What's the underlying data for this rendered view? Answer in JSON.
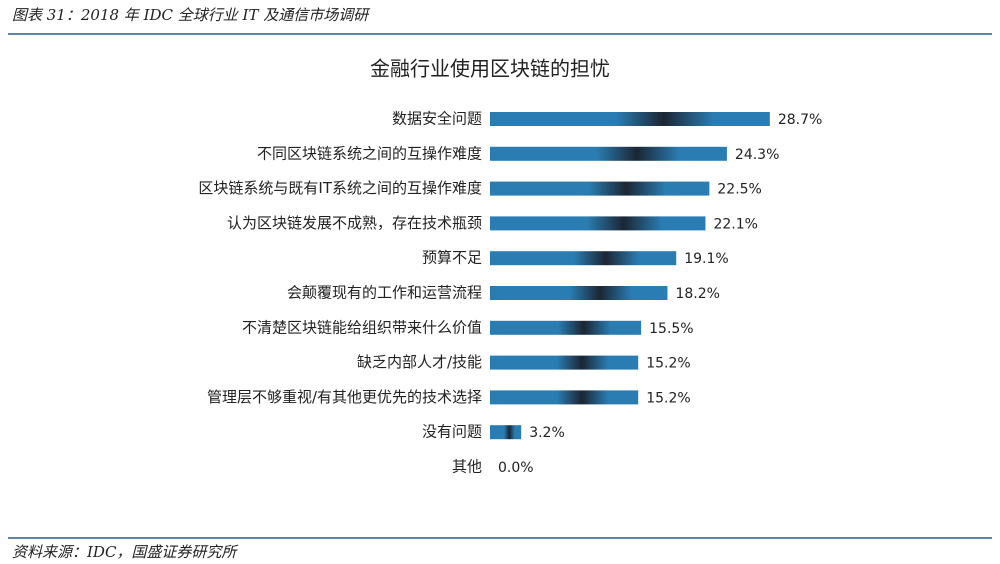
{
  "caption": "图表 31：2018 年 IDC 全球行业 IT 及通信市场调研",
  "source": "资料来源：IDC，国盛证券研究所",
  "chart_data": {
    "type": "hbar",
    "title": "金融行业使用区块链的担忧",
    "categories": [
      "数据安全问题",
      "不同区块链系统之间的互操作难度",
      "区块链系统与既有IT系统之间的互操作难度",
      "认为区块链发展不成熟，存在技术瓶颈",
      "预算不足",
      "会颠覆现有的工作和运营流程",
      "不清楚区块链能给组织带来什么价值",
      "缺乏内部人才/技能",
      "管理层不够重视/有其他更优先的技术选择",
      "没有问题",
      "其他"
    ],
    "values": [
      28.7,
      24.3,
      22.5,
      22.1,
      19.1,
      18.2,
      15.5,
      15.2,
      15.2,
      3.2,
      0.0
    ],
    "value_labels": [
      "28.7%",
      "24.3%",
      "22.5%",
      "22.1%",
      "19.1%",
      "18.2%",
      "15.5%",
      "15.2%",
      "15.2%",
      "3.2%",
      "0.0%"
    ],
    "color": "#2a7db3"
  }
}
